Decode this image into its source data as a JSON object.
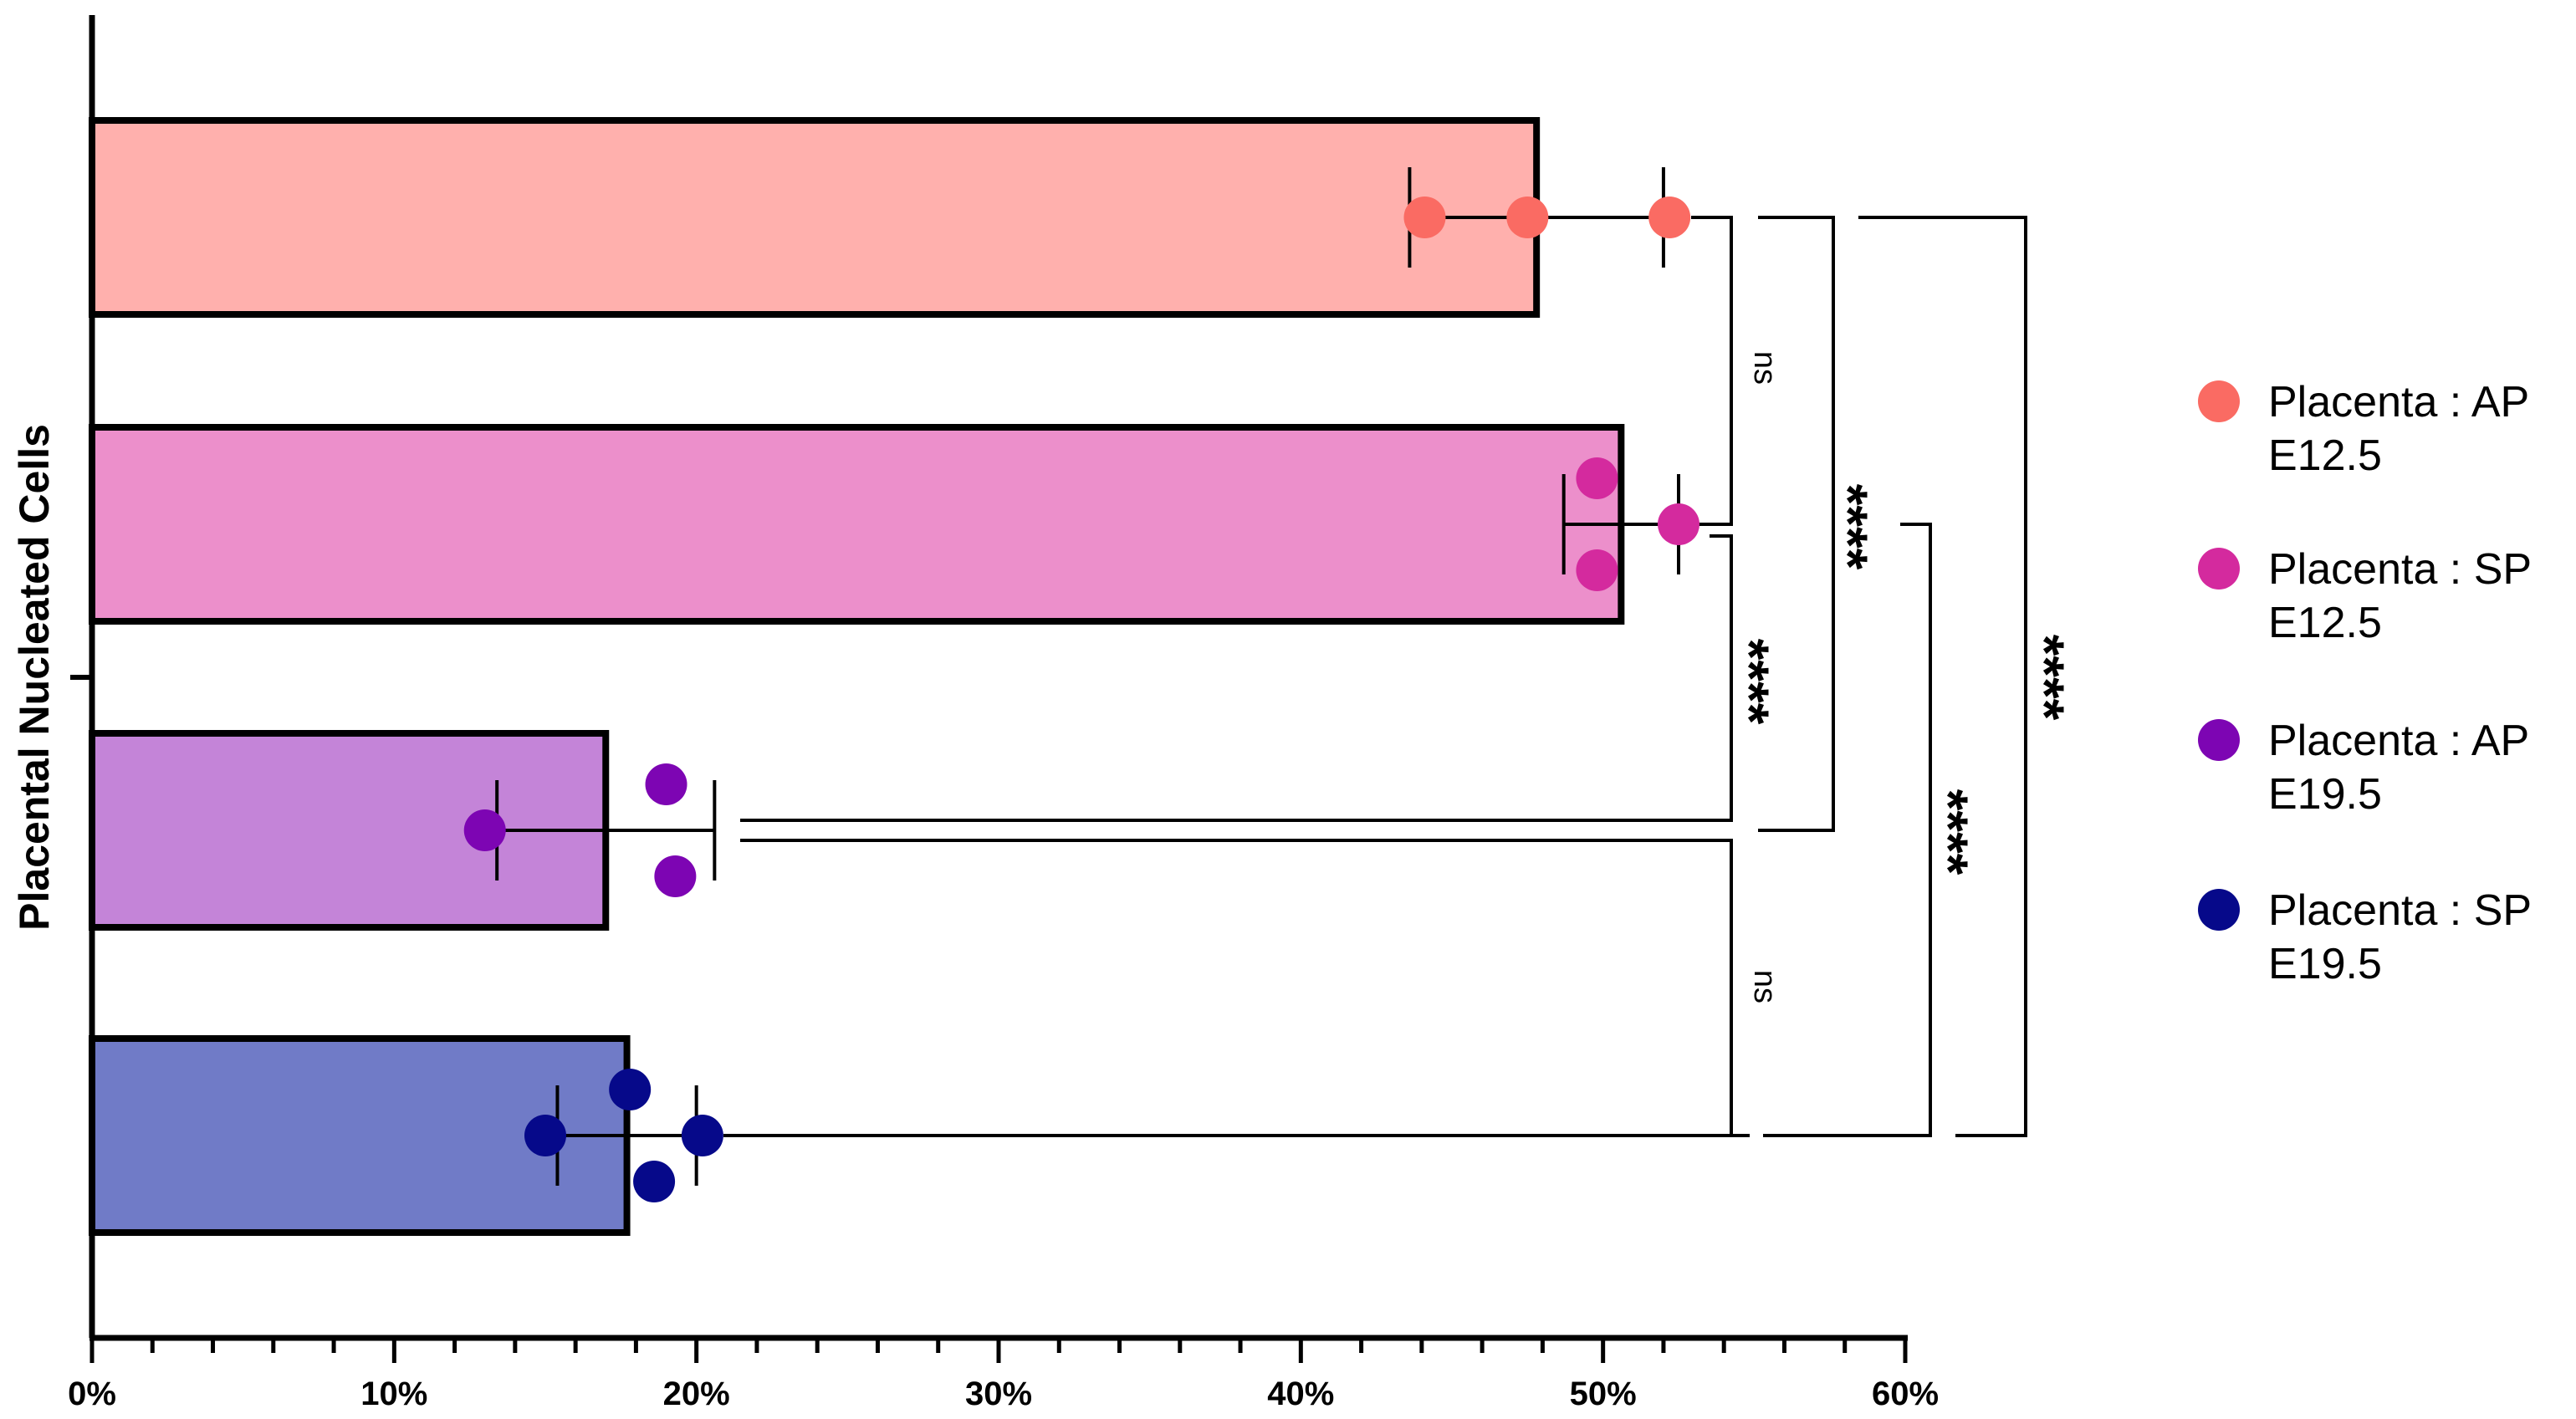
{
  "chart_data": {
    "type": "bar",
    "orientation": "horizontal",
    "ylabel": "Placental Nucleated Cells",
    "xlim": [
      0,
      60
    ],
    "xticks": [
      0,
      10,
      20,
      30,
      40,
      50,
      60
    ],
    "xtick_labels": [
      "0%",
      "10%",
      "20%",
      "30%",
      "40%",
      "50%",
      "60%"
    ],
    "legend_position": "right",
    "categories": [
      "Placenta : AP E12.5",
      "Placenta : SP E12.5",
      "Placenta : AP E19.5",
      "Placenta : SP E19.5"
    ],
    "series": [
      {
        "name": "Placenta : AP E12.5",
        "legend_lines": [
          "Placenta : AP",
          "E12.5"
        ],
        "color": "#fa6b63",
        "bar_color": "#ffb0ad",
        "mean": 47.8,
        "error": 4.2,
        "points": [
          44.1,
          47.5,
          52.2
        ]
      },
      {
        "name": "Placenta : SP E12.5",
        "legend_lines": [
          "Placenta : SP",
          "E12.5"
        ],
        "color": "#d42a9e",
        "bar_color": "#ec8fcb",
        "mean": 50.6,
        "error": 1.9,
        "points": [
          49.8,
          49.8,
          52.5
        ]
      },
      {
        "name": "Placenta : AP E19.5",
        "legend_lines": [
          "Placenta : AP",
          "E19.5"
        ],
        "color": "#7d05b3",
        "bar_color": "#c484d8",
        "mean": 17.0,
        "error": 3.6,
        "points": [
          13.0,
          19.0,
          19.3
        ]
      },
      {
        "name": "Placenta : SP E19.5",
        "legend_lines": [
          "Placenta : SP",
          "E19.5"
        ],
        "color": "#06098a",
        "bar_color": "#707bc7",
        "mean": 17.7,
        "error": 2.3,
        "points": [
          15.0,
          17.8,
          18.6,
          20.2
        ]
      }
    ],
    "comparisons": [
      {
        "groups": [
          0,
          1
        ],
        "label": "ns"
      },
      {
        "groups": [
          1,
          2
        ],
        "label": "****"
      },
      {
        "groups": [
          0,
          2
        ],
        "label": "****"
      },
      {
        "groups": [
          2,
          3
        ],
        "label": "ns"
      },
      {
        "groups": [
          1,
          3
        ],
        "label": "****"
      },
      {
        "groups": [
          0,
          3
        ],
        "label": "****"
      }
    ]
  }
}
